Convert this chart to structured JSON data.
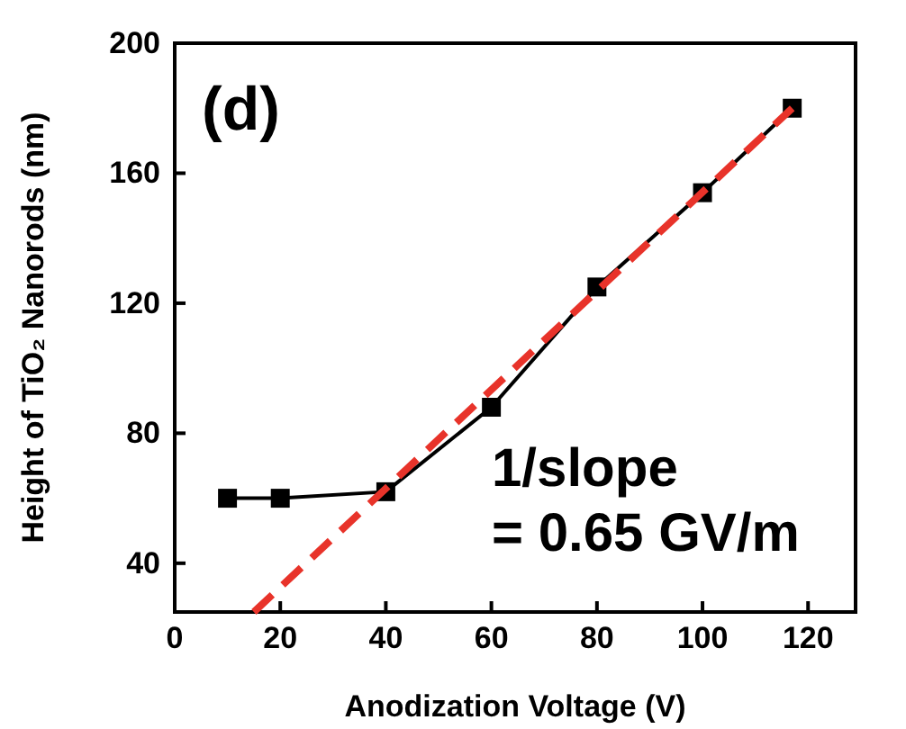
{
  "chart_data": {
    "type": "line",
    "xlabel": "Anodization Voltage (V)",
    "ylabel": "Height of TiO₂ Nanorods (nm)",
    "xlim": [
      0,
      129
    ],
    "xticks": [
      0,
      20,
      40,
      60,
      80,
      100,
      120
    ],
    "ylim": [
      25,
      200
    ],
    "yticks": [
      40,
      80,
      120,
      160,
      200
    ],
    "marker": "square",
    "line_style": "solid",
    "grid": false,
    "annotations": [
      "(d)",
      "1/slope\n= 0.65 GV/m"
    ],
    "series": [
      {
        "color": "#000000",
        "x": [
          10,
          20,
          40,
          60,
          80,
          100,
          117
        ],
        "values": [
          60,
          60,
          62,
          88,
          125,
          154,
          180
        ]
      },
      {
        "type": "line",
        "color": "#e8332a",
        "line_style": "dashed",
        "marker": "none",
        "x": [
          15,
          117
        ],
        "values": [
          25,
          180
        ]
      }
    ]
  }
}
